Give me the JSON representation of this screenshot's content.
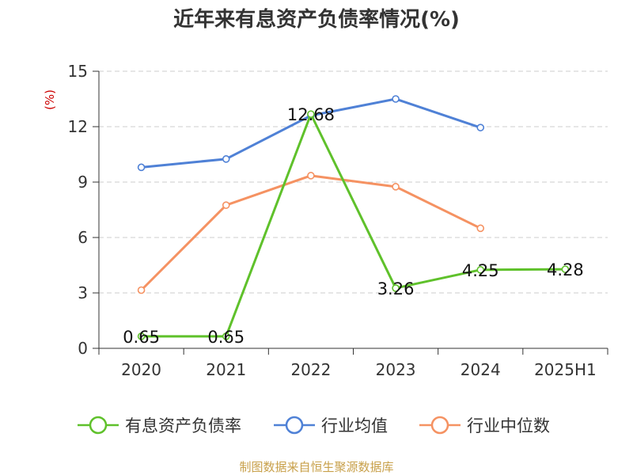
{
  "colors": {
    "text": "#333333",
    "grid": "#cccccc",
    "axis": "#333333",
    "unit": "#cc0000",
    "source": "#c8a04a"
  },
  "chart_data": {
    "type": "line",
    "title": "近年来有息资产负债率情况(%)",
    "ylabel": "(%)",
    "categories": [
      "2020",
      "2021",
      "2022",
      "2023",
      "2024",
      "2025H1"
    ],
    "ylim": [
      0,
      15
    ],
    "yticks": [
      0,
      3,
      6,
      9,
      12,
      15
    ],
    "grid": "horizontal dashed",
    "legend_position": "bottom",
    "series": [
      {
        "name": "有息资产负债率",
        "color": "#5fc12b",
        "values": [
          0.65,
          0.65,
          12.68,
          3.26,
          4.25,
          4.28
        ],
        "labels": [
          "0.65",
          "0.65",
          "12.68",
          "3.26",
          "4.25",
          "4.28"
        ]
      },
      {
        "name": "行业均值",
        "color": "#4f81d6",
        "values": [
          9.8,
          10.25,
          12.6,
          13.5,
          11.95,
          null
        ]
      },
      {
        "name": "行业中位数",
        "color": "#f59262",
        "values": [
          3.15,
          7.75,
          9.35,
          8.75,
          6.5,
          null
        ]
      }
    ],
    "source": "制图数据来自恒生聚源数据库"
  }
}
